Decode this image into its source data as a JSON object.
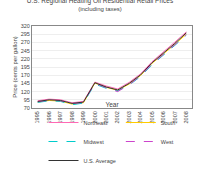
{
  "chart_data": {
    "type": "line",
    "title": "U.S. Regional Heating Oil Residential Retail Prices",
    "subtitle": "(including taxes)",
    "x_label": "Year",
    "y_label": "Price (cents per gallon)",
    "x": [
      1995,
      1996,
      1997,
      1998,
      1999,
      2000,
      2001,
      2002,
      2003,
      2004,
      2005,
      2006,
      2007,
      2008
    ],
    "series": [
      {
        "name": "Northeast",
        "color": "#ff69b4",
        "line_style": "solid",
        "values": [
          92,
          97,
          95,
          86,
          90,
          149,
          137,
          128,
          148,
          174,
          211,
          240,
          271,
          302
        ]
      },
      {
        "name": "South",
        "color": "#ffcc00",
        "line_style": "solid",
        "values": [
          88,
          93,
          91,
          82,
          86,
          146,
          133,
          124,
          143,
          169,
          206,
          234,
          264,
          295
        ]
      },
      {
        "name": "Midwest",
        "color": "#00cccc",
        "line_style": "dashed",
        "values": [
          87,
          92,
          90,
          80,
          85,
          143,
          130,
          122,
          140,
          166,
          202,
          231,
          261,
          292
        ]
      },
      {
        "name": "West",
        "color": "#cc44cc",
        "line_style": "dashed",
        "values": [
          89,
          94,
          92,
          83,
          87,
          145,
          132,
          120,
          141,
          168,
          204,
          233,
          263,
          294
        ]
      },
      {
        "name": "U.S. Average",
        "color": "#333333",
        "line_style": "solid",
        "values": [
          90,
          95,
          93,
          84,
          88,
          147,
          134,
          125,
          145,
          171,
          208,
          237,
          267,
          299
        ]
      }
    ],
    "xlim": [
      1994.5,
      2008.5
    ],
    "xticks": [
      1995,
      1996,
      1997,
      1998,
      1999,
      2000,
      2001,
      2002,
      2003,
      2004,
      2005,
      2006,
      2007,
      2008
    ],
    "ylim": [
      70,
      320
    ],
    "yticks": [
      70,
      95,
      120,
      145,
      170,
      195,
      220,
      245,
      270,
      295,
      320
    ],
    "grid": "y",
    "legend": "bottom"
  }
}
